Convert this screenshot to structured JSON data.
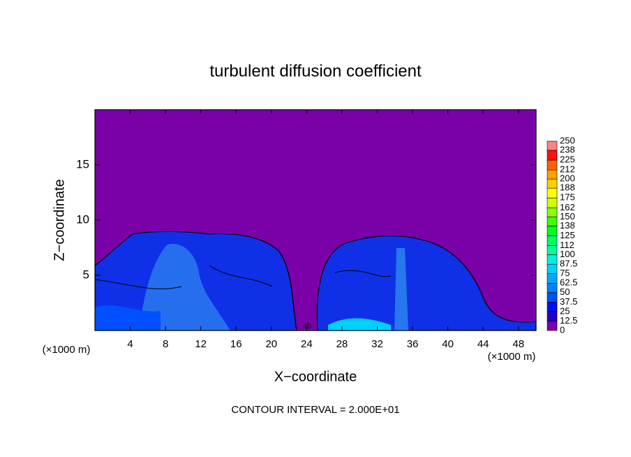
{
  "chart_data": {
    "type": "contour",
    "title": "turbulent diffusion coefficient",
    "xlabel": "X−coordinate",
    "ylabel": "Z−coordinate",
    "x_unit_left": "(×1000 m)",
    "x_unit_right": "(×1000 m)",
    "xlim": [
      0,
      50
    ],
    "xticks": [
      4,
      8,
      12,
      16,
      20,
      24,
      28,
      32,
      36,
      40,
      44,
      48
    ],
    "ylim": [
      0,
      20
    ],
    "yticks": [
      5,
      10,
      15
    ],
    "contour_label": "40",
    "note": "CONTOUR INTERVAL = 2.000E+01",
    "colorbar": {
      "ticks": [
        0,
        12.5,
        25,
        37.5,
        50,
        62.5,
        75,
        87.5,
        100,
        112,
        125,
        138,
        150,
        162,
        175,
        188,
        200,
        212,
        225,
        238,
        250
      ],
      "colors": [
        "#7a00a8",
        "#2400c8",
        "#0010ff",
        "#0050ff",
        "#0080ff",
        "#00a8ff",
        "#00d0ff",
        "#00f0e0",
        "#00ffa0",
        "#00ff60",
        "#00ff20",
        "#40ff00",
        "#90ff00",
        "#d0ff00",
        "#ffff00",
        "#ffd000",
        "#ffa000",
        "#ff6000",
        "#ff1010",
        "#ff8080"
      ]
    }
  }
}
